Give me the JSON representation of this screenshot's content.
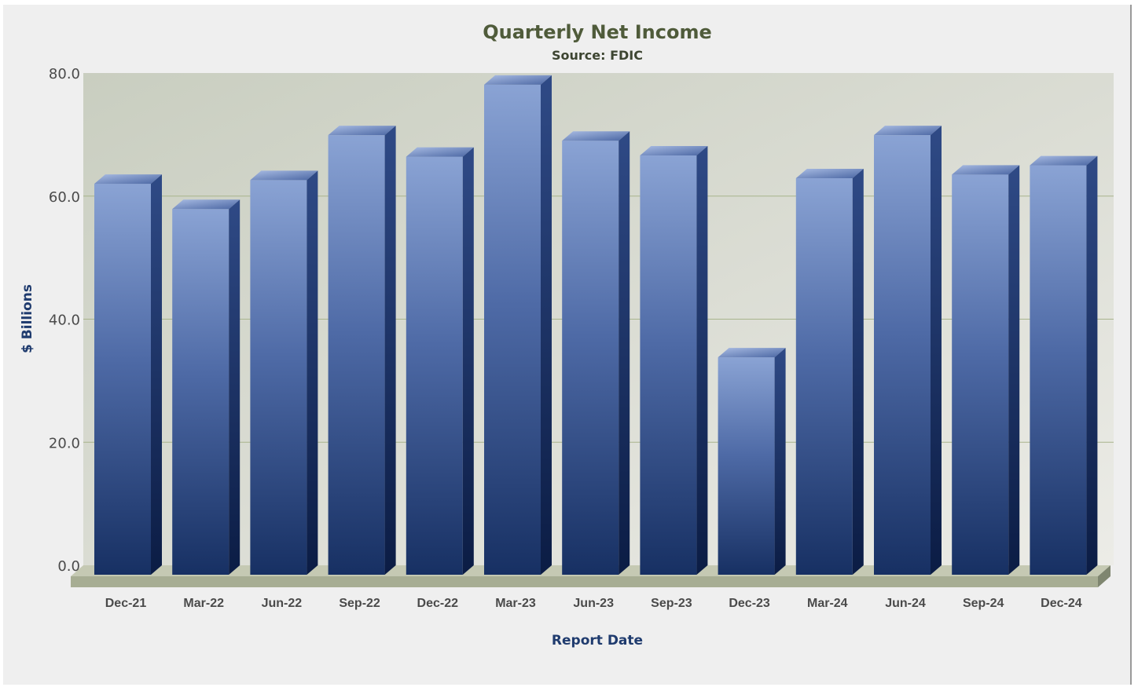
{
  "chart_data": {
    "type": "bar",
    "title": "Quarterly Net Income",
    "subtitle": "Source: FDIC",
    "xlabel": "Report Date",
    "ylabel": "$ Billions",
    "categories": [
      "Dec-21",
      "Mar-22",
      "Jun-22",
      "Sep-22",
      "Dec-22",
      "Mar-23",
      "Jun-23",
      "Sep-23",
      "Dec-23",
      "Mar-24",
      "Jun-24",
      "Sep-24",
      "Dec-24"
    ],
    "values": [
      62.0,
      57.9,
      62.6,
      69.9,
      66.4,
      78.1,
      69.0,
      66.6,
      33.8,
      62.9,
      69.9,
      63.5,
      65.0
    ],
    "ylim": [
      0,
      80
    ],
    "yticks": [
      "0.0",
      "20.0",
      "40.0",
      "60.0",
      "80.0"
    ],
    "grid": true,
    "legend": "none",
    "colors": {
      "bar_top": "#8aa3d4",
      "bar_bottom": "#173063",
      "bar_side": "#0e2350",
      "plot_bg": "#d4d8cd",
      "floor": "#b3b89f"
    }
  }
}
